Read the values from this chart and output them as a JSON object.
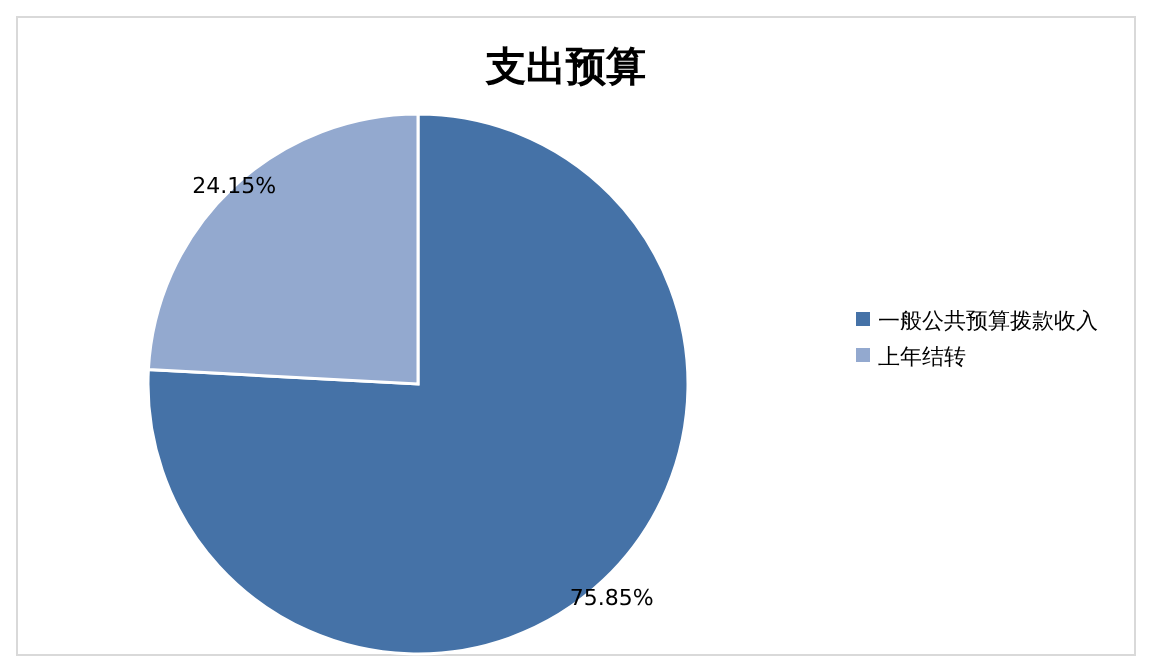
{
  "chart_data": {
    "type": "pie",
    "title": "支出预算",
    "categories": [
      "一般公共预算拨款收入",
      "上年结转"
    ],
    "values": [
      75.85,
      24.15
    ],
    "colors": [
      "#4572a7",
      "#93a9cf"
    ],
    "value_labels": [
      "75.85%",
      "24.15%"
    ],
    "legend": "right"
  }
}
